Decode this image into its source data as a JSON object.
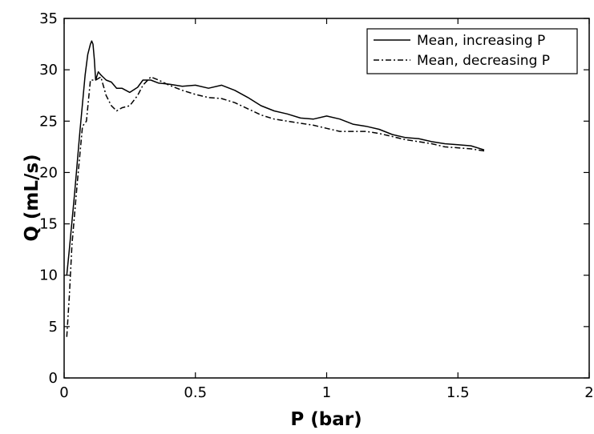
{
  "chart_data": {
    "type": "line",
    "xlabel": "P (bar)",
    "ylabel": "Q (mL/s)",
    "xlim": [
      0,
      2
    ],
    "ylim": [
      0,
      35
    ],
    "xticks": [
      0,
      0.5,
      1,
      1.5,
      2
    ],
    "yticks": [
      0,
      5,
      10,
      15,
      20,
      25,
      30,
      35
    ],
    "xtick_labels": [
      "0",
      "0.5",
      "1",
      "1.5",
      "2"
    ],
    "ytick_labels": [
      "0",
      "5",
      "10",
      "15",
      "20",
      "25",
      "30",
      "35"
    ],
    "grid": false,
    "legend_position": "top-right",
    "series": [
      {
        "name": "Mean, increasing P",
        "style": "solid",
        "color": "#000000",
        "x": [
          0.01,
          0.02,
          0.04,
          0.06,
          0.08,
          0.09,
          0.1,
          0.105,
          0.11,
          0.115,
          0.12,
          0.13,
          0.14,
          0.16,
          0.18,
          0.2,
          0.22,
          0.25,
          0.28,
          0.3,
          0.33,
          0.36,
          0.4,
          0.45,
          0.5,
          0.55,
          0.6,
          0.65,
          0.7,
          0.75,
          0.8,
          0.85,
          0.9,
          0.95,
          1.0,
          1.05,
          1.1,
          1.15,
          1.2,
          1.25,
          1.3,
          1.35,
          1.4,
          1.45,
          1.5,
          1.55,
          1.6
        ],
        "y": [
          10.0,
          12.5,
          18.0,
          24.0,
          29.5,
          31.5,
          32.5,
          32.8,
          32.5,
          31.0,
          29.0,
          29.8,
          29.5,
          29.0,
          28.8,
          28.2,
          28.2,
          27.8,
          28.3,
          29.0,
          29.0,
          28.7,
          28.6,
          28.4,
          28.5,
          28.2,
          28.5,
          28.0,
          27.3,
          26.5,
          26.0,
          25.7,
          25.3,
          25.2,
          25.5,
          25.2,
          24.7,
          24.5,
          24.2,
          23.7,
          23.4,
          23.3,
          23.0,
          22.8,
          22.7,
          22.6,
          22.2
        ]
      },
      {
        "name": "Mean, decreasing P",
        "style": "dashdot",
        "color": "#000000",
        "x": [
          0.01,
          0.02,
          0.03,
          0.05,
          0.07,
          0.085,
          0.1,
          0.12,
          0.14,
          0.16,
          0.18,
          0.2,
          0.22,
          0.25,
          0.28,
          0.3,
          0.33,
          0.36,
          0.4,
          0.45,
          0.5,
          0.55,
          0.6,
          0.65,
          0.7,
          0.75,
          0.8,
          0.85,
          0.9,
          0.95,
          1.0,
          1.05,
          1.1,
          1.15,
          1.2,
          1.25,
          1.3,
          1.35,
          1.4,
          1.45,
          1.5,
          1.55,
          1.6
        ],
        "y": [
          4.0,
          8.0,
          13.0,
          19.0,
          24.5,
          25.0,
          29.0,
          29.0,
          29.3,
          27.5,
          26.5,
          26.0,
          26.3,
          26.5,
          27.5,
          28.5,
          29.3,
          29.0,
          28.5,
          28.0,
          27.6,
          27.3,
          27.2,
          26.8,
          26.2,
          25.6,
          25.2,
          25.0,
          24.8,
          24.6,
          24.3,
          24.0,
          24.0,
          24.0,
          23.8,
          23.5,
          23.2,
          23.0,
          22.8,
          22.5,
          22.4,
          22.3,
          22.1
        ]
      }
    ]
  }
}
